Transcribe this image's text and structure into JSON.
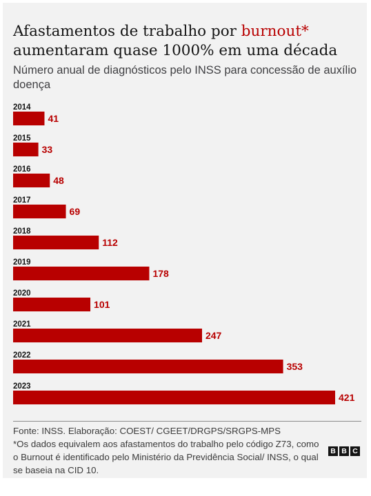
{
  "header": {
    "title_part1": "Afastamentos de trabalho por ",
    "title_highlight": "burnout*",
    "title_part2": "aumentaram quase 1000% em uma década",
    "subtitle": "Número anual de diagnósticos pelo INSS para concessão de auxílio doença"
  },
  "footer": {
    "source": "Fonte: INSS. Elaboração: COEST/ CGEET/DRGPS/SRGPS-MPS",
    "note": "*Os dados equivalem aos afastamentos do trabalho pelo código Z73, como o Burnout é identificado pelo Ministério da Previdência Social/ INSS, o qual se baseia na CID 10.",
    "logo_letters": [
      "B",
      "B",
      "C"
    ]
  },
  "colors": {
    "bar": "#b80000",
    "label": "#b80000",
    "highlight": "#b80000"
  },
  "chart_data": {
    "type": "bar",
    "orientation": "horizontal",
    "categories": [
      "2014",
      "2015",
      "2016",
      "2017",
      "2018",
      "2019",
      "2020",
      "2021",
      "2022",
      "2023"
    ],
    "values": [
      41,
      33,
      48,
      69,
      112,
      178,
      101,
      247,
      353,
      421
    ],
    "title": "Afastamentos de trabalho por burnout* aumentaram quase 1000% em uma década",
    "subtitle": "Número anual de diagnósticos pelo INSS para concessão de auxílio doença",
    "xlim": [
      0,
      421
    ],
    "grid": false,
    "legend": "none",
    "data_labels": true
  }
}
